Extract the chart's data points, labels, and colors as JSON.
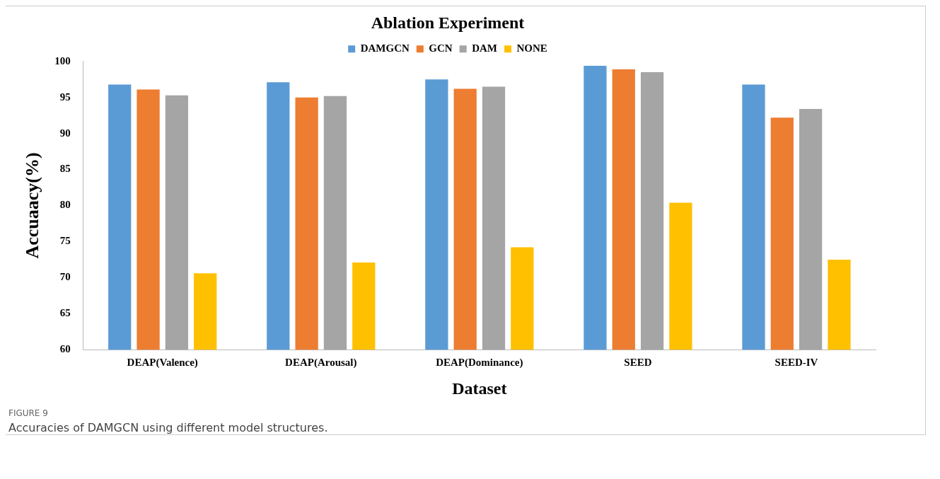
{
  "chart_data": {
    "type": "bar",
    "title": "Ablation Experiment",
    "xlabel": "Dataset",
    "ylabel": "Accuaacy(%)",
    "categories": [
      "DEAP(Valence)",
      "DEAP(Arousal)",
      "DEAP(Dominance)",
      "SEED",
      "SEED-IV"
    ],
    "series": [
      {
        "name": "DAMGCN",
        "color": "#5b9bd5",
        "values": [
          96.8,
          97.1,
          97.5,
          99.4,
          96.8
        ]
      },
      {
        "name": "GCN",
        "color": "#ed7d31",
        "values": [
          96.1,
          95.0,
          96.2,
          98.9,
          92.2
        ]
      },
      {
        "name": "DAM",
        "color": "#a5a5a5",
        "values": [
          95.3,
          95.2,
          96.5,
          98.5,
          93.4
        ]
      },
      {
        "name": "NONE",
        "color": "#ffc000",
        "values": [
          70.6,
          72.1,
          74.2,
          80.4,
          72.5
        ]
      }
    ],
    "ylim": [
      60,
      100
    ],
    "yticks": [
      60,
      65,
      70,
      75,
      80,
      85,
      90,
      95,
      100
    ],
    "grid": false,
    "legend": "top",
    "annotations": [
      "FIGURE 9",
      "Accuracies of DAMGCN using different model structures."
    ]
  }
}
